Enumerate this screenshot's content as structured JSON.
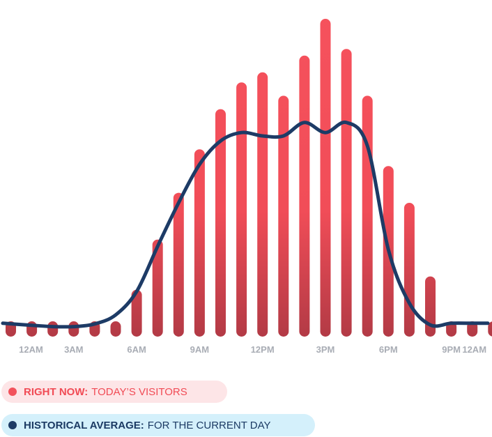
{
  "chart_data": {
    "type": "bar",
    "x_tick_labels": [
      "12AM",
      "3AM",
      "6AM",
      "9AM",
      "12PM",
      "3PM",
      "6PM",
      "9PM",
      "12AM"
    ],
    "series": [
      {
        "name": "RIGHT NOW: TODAY'S VISITORS",
        "kind": "bar",
        "color": "#f2525c",
        "values": [
          0,
          0,
          0,
          0,
          0,
          0,
          14,
          29,
          43,
          56,
          68,
          76,
          79,
          72,
          84,
          95,
          86,
          72,
          51,
          40,
          18,
          0,
          0,
          0
        ]
      },
      {
        "name": "HISTORICAL AVERAGE: FOR THE CURRENT DAY",
        "kind": "line",
        "color": "#1d3b66",
        "values": [
          4,
          3.4,
          3,
          3,
          3.8,
          6.5,
          13.5,
          27,
          40,
          51.5,
          58.5,
          61,
          60,
          60,
          64,
          61,
          64,
          57,
          26,
          10,
          3.5,
          4,
          4,
          4
        ]
      }
    ],
    "ylim": [
      0,
      100
    ]
  },
  "legend": {
    "today": {
      "strong": "RIGHT NOW:",
      "rest": "TODAY’S VISITORS",
      "color": "#f2525c"
    },
    "historical": {
      "strong": "HISTORICAL AVERAGE:",
      "rest": "FOR THE CURRENT DAY",
      "color": "#1d3b66"
    }
  }
}
